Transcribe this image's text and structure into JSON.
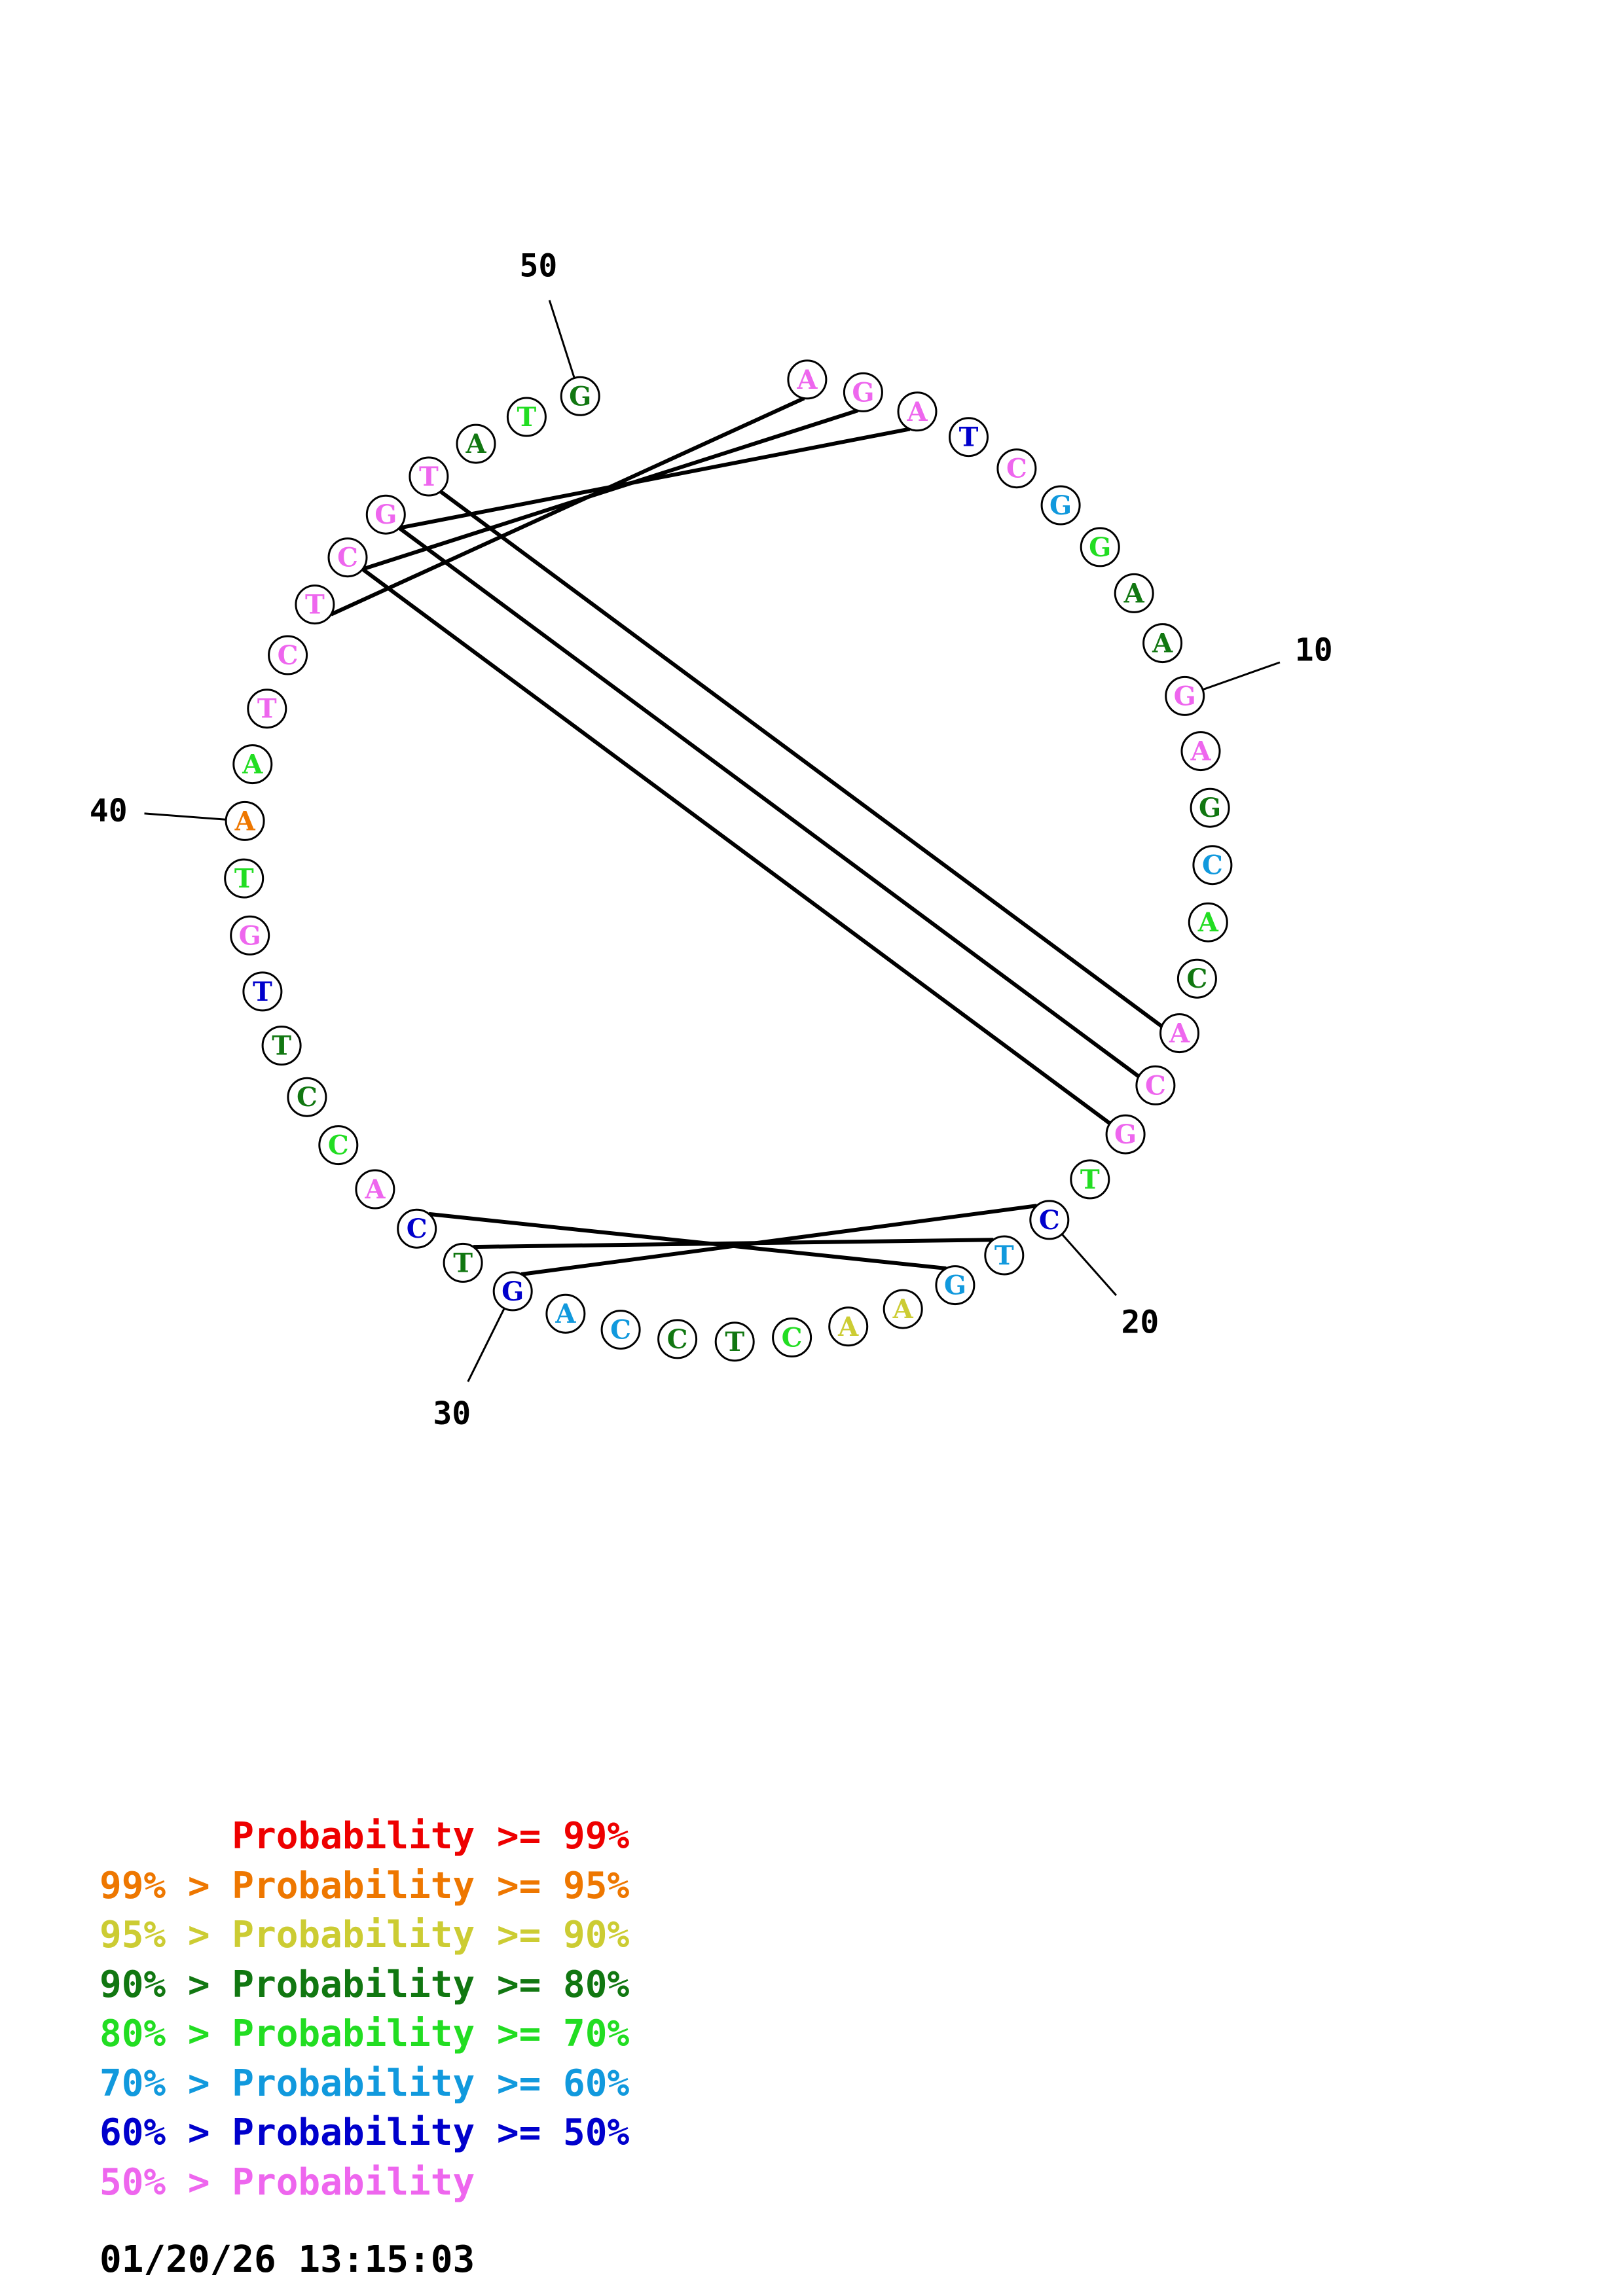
{
  "sequence": [
    {
      "n": 1,
      "base": "A",
      "cls": "p50"
    },
    {
      "n": 2,
      "base": "G",
      "cls": "p50"
    },
    {
      "n": 3,
      "base": "A",
      "cls": "p50"
    },
    {
      "n": 4,
      "base": "T",
      "cls": "p5060"
    },
    {
      "n": 5,
      "base": "C",
      "cls": "p50"
    },
    {
      "n": 6,
      "base": "G",
      "cls": "p6070"
    },
    {
      "n": 7,
      "base": "G",
      "cls": "p7080"
    },
    {
      "n": 8,
      "base": "A",
      "cls": "p8090"
    },
    {
      "n": 9,
      "base": "A",
      "cls": "p8090"
    },
    {
      "n": 10,
      "base": "G",
      "cls": "p50"
    },
    {
      "n": 11,
      "base": "A",
      "cls": "p50"
    },
    {
      "n": 12,
      "base": "G",
      "cls": "p8090"
    },
    {
      "n": 13,
      "base": "C",
      "cls": "p6070"
    },
    {
      "n": 14,
      "base": "A",
      "cls": "p7080"
    },
    {
      "n": 15,
      "base": "C",
      "cls": "p8090"
    },
    {
      "n": 16,
      "base": "A",
      "cls": "p50"
    },
    {
      "n": 17,
      "base": "C",
      "cls": "p50"
    },
    {
      "n": 18,
      "base": "G",
      "cls": "p50"
    },
    {
      "n": 19,
      "base": "T",
      "cls": "p7080"
    },
    {
      "n": 20,
      "base": "C",
      "cls": "p5060"
    },
    {
      "n": 21,
      "base": "T",
      "cls": "p6070"
    },
    {
      "n": 22,
      "base": "G",
      "cls": "p6070"
    },
    {
      "n": 23,
      "base": "A",
      "cls": "p9095"
    },
    {
      "n": 24,
      "base": "A",
      "cls": "p9095"
    },
    {
      "n": 25,
      "base": "C",
      "cls": "p7080"
    },
    {
      "n": 26,
      "base": "T",
      "cls": "p8090"
    },
    {
      "n": 27,
      "base": "C",
      "cls": "p8090"
    },
    {
      "n": 28,
      "base": "C",
      "cls": "p6070"
    },
    {
      "n": 29,
      "base": "A",
      "cls": "p6070"
    },
    {
      "n": 30,
      "base": "G",
      "cls": "p5060"
    },
    {
      "n": 31,
      "base": "T",
      "cls": "p8090"
    },
    {
      "n": 32,
      "base": "C",
      "cls": "p5060"
    },
    {
      "n": 33,
      "base": "A",
      "cls": "p50"
    },
    {
      "n": 34,
      "base": "C",
      "cls": "p7080"
    },
    {
      "n": 35,
      "base": "C",
      "cls": "p8090"
    },
    {
      "n": 36,
      "base": "T",
      "cls": "p8090"
    },
    {
      "n": 37,
      "base": "T",
      "cls": "p5060"
    },
    {
      "n": 38,
      "base": "G",
      "cls": "p50"
    },
    {
      "n": 39,
      "base": "T",
      "cls": "p7080"
    },
    {
      "n": 40,
      "base": "A",
      "cls": "p9599"
    },
    {
      "n": 41,
      "base": "A",
      "cls": "p7080"
    },
    {
      "n": 42,
      "base": "T",
      "cls": "p50"
    },
    {
      "n": 43,
      "base": "C",
      "cls": "p50"
    },
    {
      "n": 44,
      "base": "T",
      "cls": "p50"
    },
    {
      "n": 45,
      "base": "C",
      "cls": "p50"
    },
    {
      "n": 46,
      "base": "G",
      "cls": "p50"
    },
    {
      "n": 47,
      "base": "T",
      "cls": "p50"
    },
    {
      "n": 48,
      "base": "A",
      "cls": "p8090"
    },
    {
      "n": 49,
      "base": "T",
      "cls": "p7080"
    },
    {
      "n": 50,
      "base": "G",
      "cls": "p8090"
    }
  ],
  "pairs": [
    [
      1,
      44
    ],
    [
      2,
      45
    ],
    [
      3,
      46
    ],
    [
      16,
      47
    ],
    [
      17,
      46
    ],
    [
      18,
      45
    ],
    [
      20,
      30
    ],
    [
      21,
      31
    ],
    [
      22,
      32
    ]
  ],
  "tick_labels": [
    {
      "n": 10,
      "text": "10"
    },
    {
      "n": 20,
      "text": "20"
    },
    {
      "n": 30,
      "text": "30"
    },
    {
      "n": 40,
      "text": "40"
    },
    {
      "n": 50,
      "text": "50"
    }
  ],
  "colors": {
    "p99": "#ee0000",
    "p9599": "#ee7700",
    "p9095": "#cccc33",
    "p8090": "#117711",
    "p7080": "#22dd22",
    "p6070": "#1199dd",
    "p5060": "#0000cc",
    "p50": "#ee66ee"
  },
  "legend": [
    {
      "text": "      Probability >= 99%",
      "cls": "p99"
    },
    {
      "text": "99% > Probability >= 95%",
      "cls": "p9599"
    },
    {
      "text": "95% > Probability >= 90%",
      "cls": "p9095"
    },
    {
      "text": "90% > Probability >= 80%",
      "cls": "p8090"
    },
    {
      "text": "80% > Probability >= 70%",
      "cls": "p7080"
    },
    {
      "text": "70% > Probability >= 60%",
      "cls": "p6070"
    },
    {
      "text": "60% > Probability >= 50%",
      "cls": "p5060"
    },
    {
      "text": "50% > Probability",
      "cls": "p50"
    }
  ],
  "timestamp": "01/20/26 13:15:03"
}
